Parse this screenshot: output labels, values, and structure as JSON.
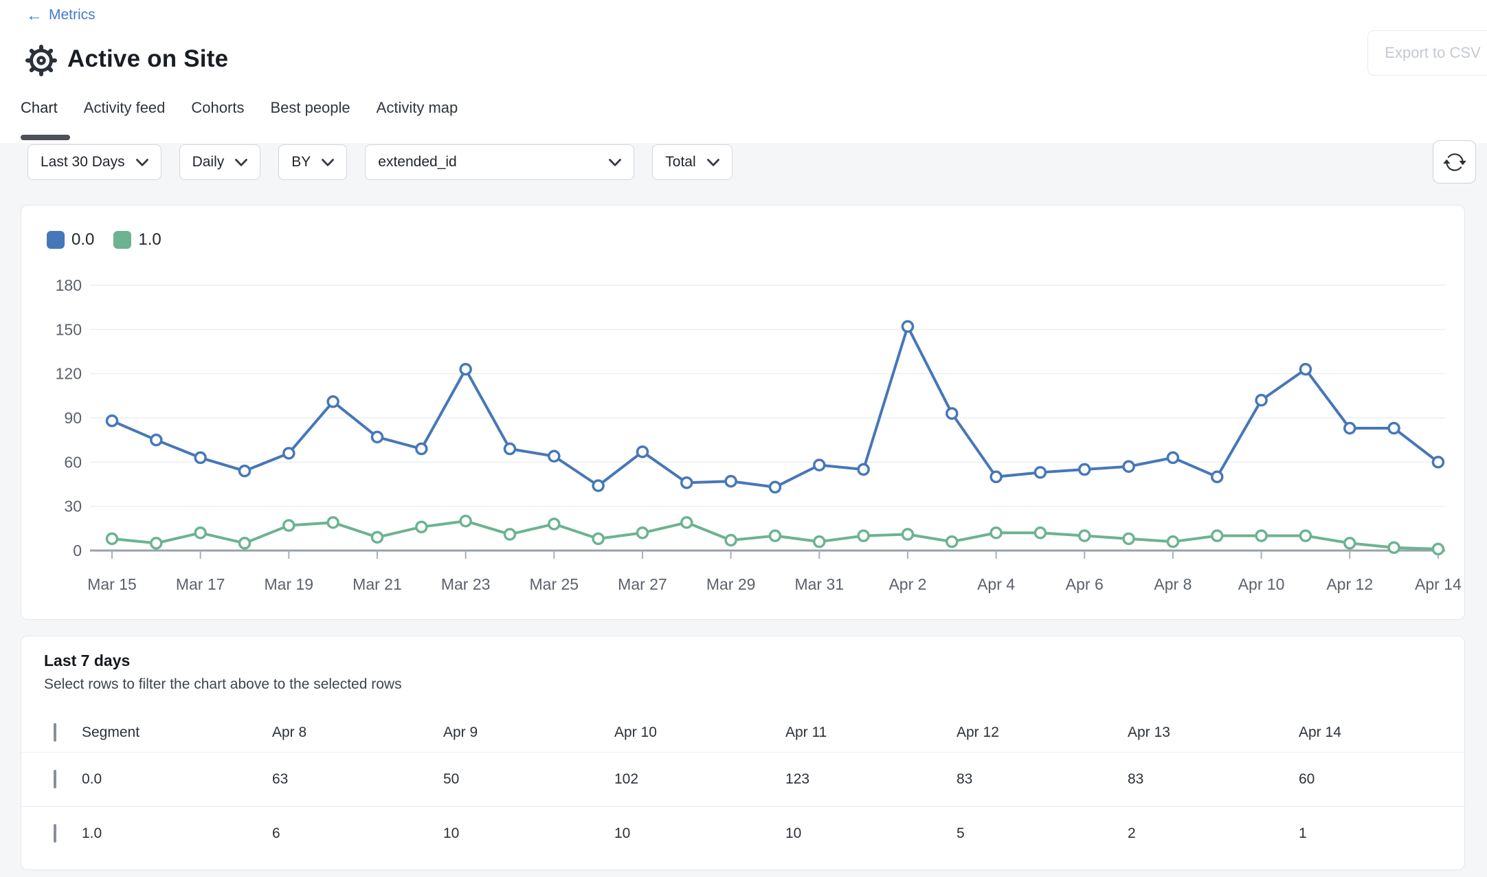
{
  "header": {
    "back_link": "Metrics",
    "back_arrow": "←",
    "title": "Active on Site",
    "export_button": "Export to CSV",
    "tabs": [
      {
        "label": "Chart",
        "active": true
      },
      {
        "label": "Activity feed",
        "active": false
      },
      {
        "label": "Cohorts",
        "active": false
      },
      {
        "label": "Best people",
        "active": false
      },
      {
        "label": "Activity map",
        "active": false
      }
    ]
  },
  "filters": {
    "date_range": "Last 30 Days",
    "granularity": "Daily",
    "by_label": "BY",
    "breakdown_property": "extended_id",
    "aggregation": "Total"
  },
  "icons": {
    "gear": "gear-icon",
    "refresh": "refresh-icon",
    "chevron": "chevron-down-icon"
  },
  "colors": {
    "series_blue": "#4677b8",
    "series_green": "#6cb390",
    "link_blue": "#4678cf",
    "active_tab_underline": "#4d5258",
    "page_background": "#f5f6f8"
  },
  "chart_data": {
    "type": "line",
    "x": [
      "Mar 15",
      "Mar 16",
      "Mar 17",
      "Mar 18",
      "Mar 19",
      "Mar 20",
      "Mar 21",
      "Mar 22",
      "Mar 23",
      "Mar 24",
      "Mar 25",
      "Mar 26",
      "Mar 27",
      "Mar 28",
      "Mar 29",
      "Mar 30",
      "Mar 31",
      "Apr 1",
      "Apr 2",
      "Apr 3",
      "Apr 4",
      "Apr 5",
      "Apr 6",
      "Apr 7",
      "Apr 8",
      "Apr 9",
      "Apr 10",
      "Apr 11",
      "Apr 12",
      "Apr 13",
      "Apr 14"
    ],
    "x_label_every": 2,
    "series": [
      {
        "name": "0.0",
        "color": "#4677b8",
        "values": [
          88,
          75,
          63,
          54,
          66,
          101,
          77,
          69,
          123,
          69,
          64,
          44,
          67,
          46,
          47,
          43,
          58,
          55,
          152,
          93,
          50,
          53,
          55,
          57,
          63,
          50,
          102,
          123,
          83,
          83,
          60
        ]
      },
      {
        "name": "1.0",
        "color": "#6cb390",
        "values": [
          8,
          5,
          12,
          5,
          17,
          19,
          9,
          16,
          20,
          11,
          18,
          8,
          12,
          19,
          7,
          10,
          6,
          10,
          11,
          6,
          12,
          12,
          10,
          8,
          6,
          10,
          10,
          10,
          5,
          2,
          1
        ]
      }
    ],
    "ylim": [
      0,
      180
    ],
    "yticks": [
      0,
      30,
      60,
      90,
      120,
      150,
      180
    ],
    "grid": true,
    "legend_position": "top-left"
  },
  "table": {
    "title": "Last 7 days",
    "subtitle": "Select rows to filter the chart above to the selected rows",
    "segment_header": "Segment",
    "date_columns": [
      "Apr 8",
      "Apr 9",
      "Apr 10",
      "Apr 11",
      "Apr 12",
      "Apr 13",
      "Apr 14"
    ],
    "rows": [
      {
        "segment": "0.0",
        "values": [
          63,
          50,
          102,
          123,
          83,
          83,
          60
        ]
      },
      {
        "segment": "1.0",
        "values": [
          6,
          10,
          10,
          10,
          5,
          2,
          1
        ]
      }
    ]
  }
}
